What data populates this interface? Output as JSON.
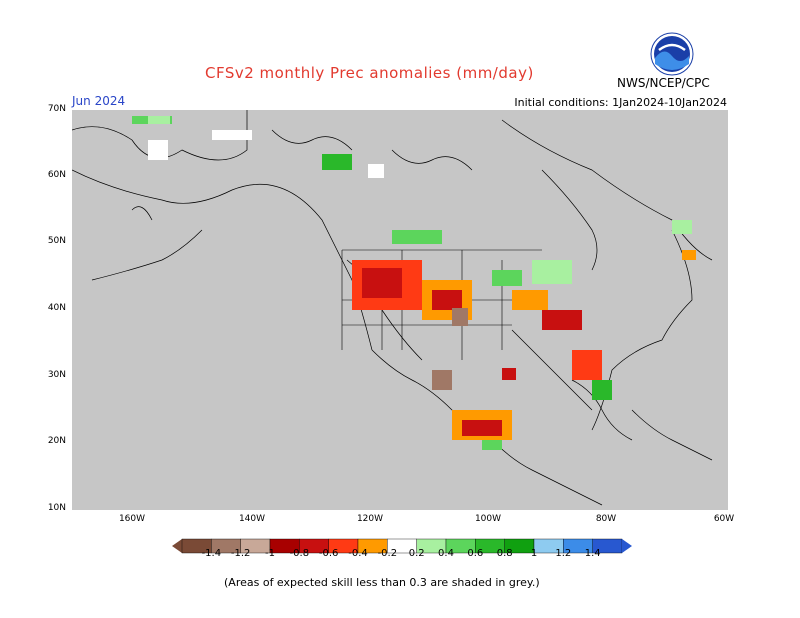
{
  "title": "CFSv2 monthly Prec anomalies (mm/day)",
  "month": "Jun 2024",
  "initial_conditions": "Initial conditions: 1Jan2024-10Jan2024",
  "agency": "NWS/NCEP/CPC",
  "footnote": "(Areas of expected skill less than 0.3 are shaded in grey.)",
  "y_ticks": [
    "70N",
    "60N",
    "50N",
    "40N",
    "30N",
    "20N",
    "10N"
  ],
  "x_ticks": [
    "160W",
    "140W",
    "120W",
    "100W",
    "80W",
    "60W"
  ],
  "colorbar": {
    "labels": [
      "-1.4",
      "-1.2",
      "-1",
      "-0.8",
      "-0.6",
      "-0.4",
      "-0.2",
      "0.2",
      "0.4",
      "0.6",
      "0.8",
      "1",
      "1.2",
      "1.4"
    ],
    "colors": [
      "#7a4a36",
      "#a07866",
      "#c8a898",
      "#a80000",
      "#c81010",
      "#ff3a14",
      "#ff9a00",
      "#ffffff",
      "#a8f0a0",
      "#5cd55c",
      "#2ab82a",
      "#10a010",
      "#8ecbf0",
      "#3c8ce8",
      "#2858d0"
    ]
  },
  "colors": {
    "land_grey": "#c6c6c6",
    "map_border": "#000000",
    "title_red": "#e23a2f",
    "month_blue": "#2a46c8"
  }
}
